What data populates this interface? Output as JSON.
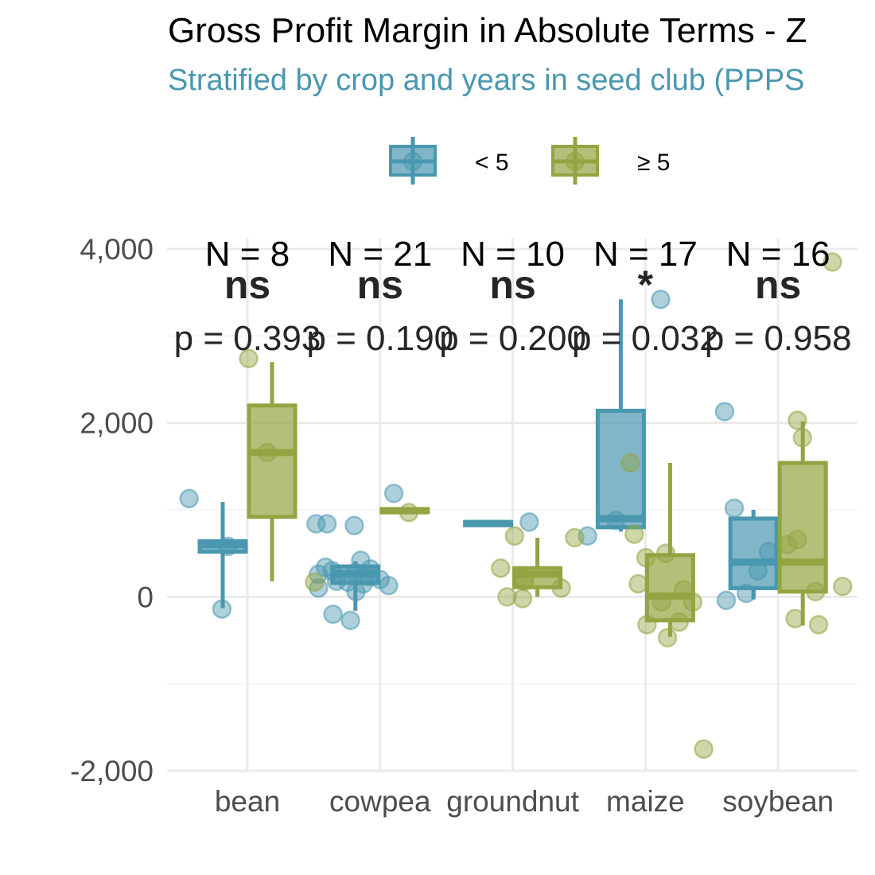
{
  "title": "Gross Profit Margin in Absolute Terms - Z",
  "subtitle": "Stratified by crop and years in seed club (PPPS",
  "colors": {
    "lt5": "#4a97b0",
    "ge5": "#94a442",
    "grid": "#ebebeb",
    "text": "#4d4d4d"
  },
  "chart_data": {
    "type": "box",
    "categories": [
      "bean",
      "cowpea",
      "groundnut",
      "maize",
      "soybean"
    ],
    "ylim": [
      -2000,
      4000
    ],
    "y_ticks": [
      -2000,
      0,
      2000,
      4000
    ],
    "y_tick_labels": [
      "-2,000",
      "0",
      "2,000",
      "4,000"
    ],
    "grid": true,
    "legend": {
      "position": "top",
      "entries": [
        {
          "key": "lt5",
          "label": "< 5"
        },
        {
          "key": "ge5",
          "label": "≥ 5"
        }
      ]
    },
    "annotations": [
      {
        "category": "bean",
        "n": "N = 8",
        "sig": "ns",
        "p": "p = 0.393"
      },
      {
        "category": "cowpea",
        "n": "N = 21",
        "sig": "ns",
        "p": "p = 0.190"
      },
      {
        "category": "groundnut",
        "n": "N = 10",
        "sig": "ns",
        "p": "p = 0.200"
      },
      {
        "category": "maize",
        "n": "N = 17",
        "sig": "*",
        "p": "p = 0.032"
      },
      {
        "category": "soybean",
        "n": "N = 16",
        "sig": "ns",
        "p": "p = 0.958"
      }
    ],
    "series": [
      {
        "key": "lt5",
        "name": "< 5",
        "boxes": [
          {
            "category": "bean",
            "min": -130,
            "q1": 520,
            "median": 600,
            "q3": 640,
            "max": 1090
          },
          {
            "category": "cowpea",
            "min": -160,
            "q1": 160,
            "median": 270,
            "q3": 350,
            "max": 410
          },
          {
            "category": "groundnut",
            "min": 830,
            "q1": 830,
            "median": 845,
            "q3": 860,
            "max": 860
          },
          {
            "category": "maize",
            "min": 750,
            "q1": 800,
            "median": 900,
            "q3": 2140,
            "max": 3420
          },
          {
            "category": "soybean",
            "min": -30,
            "q1": 100,
            "median": 400,
            "q3": 900,
            "max": 1000
          }
        ],
        "points": [
          {
            "category": "bean",
            "values": [
              -140,
              580,
              1130
            ]
          },
          {
            "category": "cowpea",
            "values": [
              -200,
              -270,
              60,
              100,
              130,
              150,
              170,
              180,
              200,
              230,
              260,
              280,
              300,
              320,
              340,
              420,
              820,
              840,
              840,
              1190
            ]
          },
          {
            "category": "groundnut",
            "values": [
              860
            ]
          },
          {
            "category": "maize",
            "values": [
              700,
              880,
              3420
            ]
          },
          {
            "category": "soybean",
            "values": [
              -40,
              40,
              300,
              520,
              1020,
              2130
            ]
          }
        ]
      },
      {
        "key": "ge5",
        "name": "≥ 5",
        "boxes": [
          {
            "category": "bean",
            "min": 180,
            "q1": 920,
            "median": 1660,
            "q3": 2200,
            "max": 2700
          },
          {
            "category": "cowpea",
            "min": 970,
            "q1": 990,
            "median": 990,
            "q3": 1010,
            "max": 1010
          },
          {
            "category": "groundnut",
            "min": 0,
            "q1": 110,
            "median": 260,
            "q3": 330,
            "max": 680
          },
          {
            "category": "maize",
            "min": -460,
            "q1": -270,
            "median": 10,
            "q3": 480,
            "max": 1540
          },
          {
            "category": "soybean",
            "min": -330,
            "q1": 60,
            "median": 400,
            "q3": 1540,
            "max": 2020
          }
        ],
        "points": [
          {
            "category": "bean",
            "values": [
              170,
              1660,
              2740
            ]
          },
          {
            "category": "cowpea",
            "values": [
              970
            ]
          },
          {
            "category": "groundnut",
            "values": [
              -20,
              0,
              100,
              180,
              210,
              330,
              680,
              700
            ]
          },
          {
            "category": "maize",
            "values": [
              -1750,
              -470,
              -320,
              -290,
              -60,
              -60,
              80,
              150,
              450,
              500,
              720,
              1540
            ]
          },
          {
            "category": "soybean",
            "values": [
              -250,
              -320,
              60,
              120,
              600,
              660,
              1830,
              2030,
              3850
            ]
          }
        ]
      }
    ]
  }
}
